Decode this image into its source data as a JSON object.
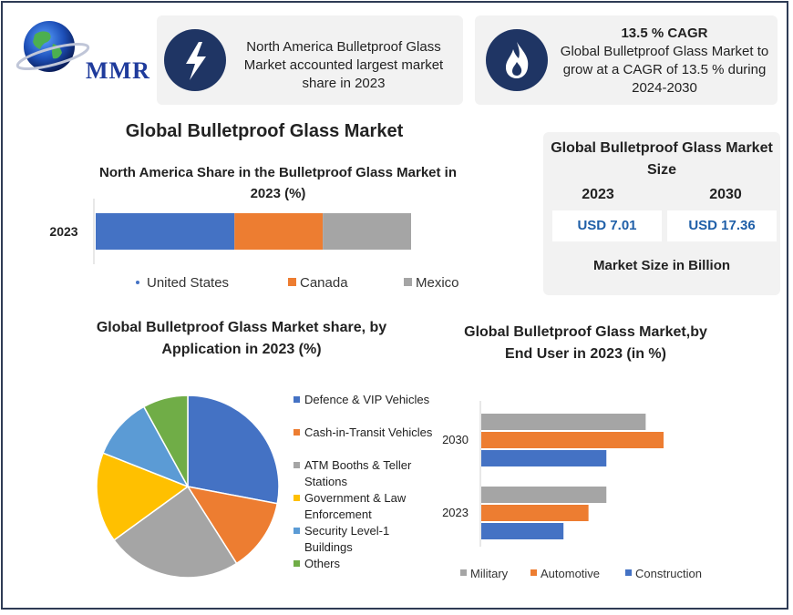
{
  "brand": {
    "name": "MMR"
  },
  "card_left": {
    "icon": "lightning-icon",
    "text": "North America Bulletproof Glass Market accounted largest market share in 2023"
  },
  "card_right": {
    "icon": "flame-icon",
    "heading": "13.5 % CAGR",
    "text": "Global Bulletproof Glass Market to grow at a CAGR of 13.5 % during 2024-2030"
  },
  "main_title": "Global Bulletproof  Glass Market",
  "market_size": {
    "title": "Global Bulletproof Glass Market Size",
    "year_a": "2023",
    "year_b": "2030",
    "value_a": "USD 7.01",
    "value_b": "USD 17.36",
    "footer": "Market Size in Billion"
  },
  "colors": {
    "blue": "#4472c4",
    "orange": "#ed7d31",
    "gray": "#a5a5a5",
    "yellow": "#ffc000",
    "lightblue": "#5b9bd5",
    "green": "#70ad47",
    "navy": "#1f3564"
  },
  "chart_data": [
    {
      "type": "bar",
      "orientation": "horizontal-stacked",
      "title": "North America Share in the Bulletproof Glass Market in 2023  (%)",
      "categories": [
        "2023"
      ],
      "series": [
        {
          "name": "United States",
          "values": [
            44
          ]
        },
        {
          "name": "Canada",
          "values": [
            28
          ]
        },
        {
          "name": "Mexico",
          "values": [
            28
          ]
        }
      ],
      "legend": "bottom"
    },
    {
      "type": "pie",
      "title": "Global Bulletproof Glass Market share, by Application in 2023  (%)",
      "labels": [
        "Defence & VIP Vehicles",
        "Cash-in-Transit Vehicles",
        "ATM Booths & Teller Stations",
        "Government & Law Enforcement",
        "Security Level-1 Buildings",
        "Others"
      ],
      "values": [
        28,
        13,
        24,
        16,
        11,
        8
      ],
      "legend": "right"
    },
    {
      "type": "bar",
      "orientation": "horizontal-grouped",
      "title": "Global Bulletproof Glass Market,by End User in 2023 (in %)",
      "categories": [
        "2030",
        "2023"
      ],
      "series": [
        {
          "name": "Military",
          "values": [
            46,
            35
          ]
        },
        {
          "name": "Automotive",
          "values": [
            51,
            30
          ]
        },
        {
          "name": "Construction",
          "values": [
            35,
            23
          ]
        }
      ],
      "legend": "bottom"
    }
  ]
}
